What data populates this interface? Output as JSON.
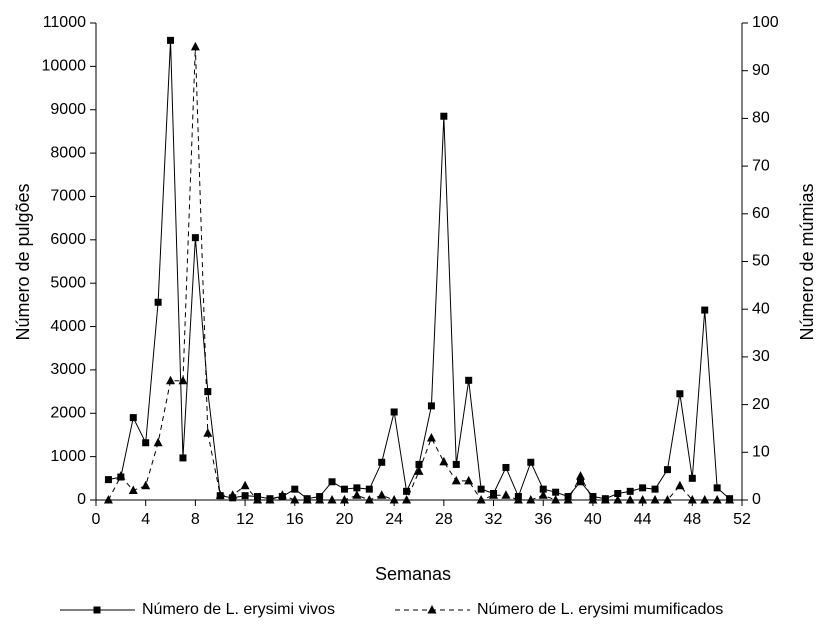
{
  "chart_data": {
    "type": "line",
    "x_label": "Semanas",
    "y_label": "Número de pulgões",
    "y2_label": "Número de múmias",
    "x": [
      1,
      2,
      3,
      4,
      5,
      6,
      7,
      8,
      9,
      10,
      11,
      12,
      13,
      14,
      15,
      16,
      17,
      18,
      19,
      20,
      21,
      22,
      23,
      24,
      25,
      26,
      27,
      28,
      29,
      30,
      31,
      32,
      33,
      34,
      35,
      36,
      37,
      38,
      39,
      40,
      41,
      42,
      43,
      44,
      45,
      46,
      47,
      48,
      49,
      50,
      51
    ],
    "series": [
      {
        "name": "Número de L. erysimi vivos",
        "color": "#000000",
        "marker": "square",
        "dash": false,
        "values": [
          470,
          530,
          1900,
          1320,
          4560,
          10600,
          970,
          6050,
          2500,
          100,
          50,
          100,
          80,
          30,
          80,
          250,
          30,
          80,
          420,
          250,
          280,
          250,
          870,
          2030,
          200,
          820,
          2170,
          8850,
          820,
          2760,
          250,
          150,
          750,
          80,
          870,
          250,
          180,
          80,
          420,
          80,
          30,
          150,
          200,
          280,
          250,
          700,
          2450,
          500,
          4380,
          280,
          30
        ]
      },
      {
        "name": "Número de L. erysimi mumificados",
        "color": "#000000",
        "marker": "triangle",
        "dash": true,
        "axis": "y2",
        "values": [
          0,
          5,
          2,
          3,
          12,
          25,
          25,
          95,
          14,
          1,
          1,
          3,
          0,
          0,
          1,
          0,
          0,
          0,
          0,
          0,
          1,
          0,
          1,
          0,
          0,
          6,
          13,
          8,
          4,
          4,
          0,
          1,
          1,
          0,
          0,
          1,
          0,
          0,
          5,
          0,
          0,
          0,
          0,
          0,
          0,
          0,
          3,
          0,
          0,
          0,
          0
        ]
      }
    ],
    "xlim": [
      0,
      52
    ],
    "xticks": [
      0,
      4,
      8,
      12,
      16,
      20,
      24,
      28,
      32,
      36,
      40,
      44,
      48,
      52
    ],
    "ylim": [
      0,
      11000
    ],
    "yticks": [
      0,
      1000,
      2000,
      3000,
      4000,
      5000,
      6000,
      7000,
      8000,
      9000,
      10000,
      11000
    ],
    "y2lim": [
      0,
      100
    ],
    "y2ticks": [
      0,
      10,
      20,
      30,
      40,
      50,
      60,
      70,
      80,
      90,
      100
    ],
    "grid": false,
    "legend": "bottom"
  }
}
